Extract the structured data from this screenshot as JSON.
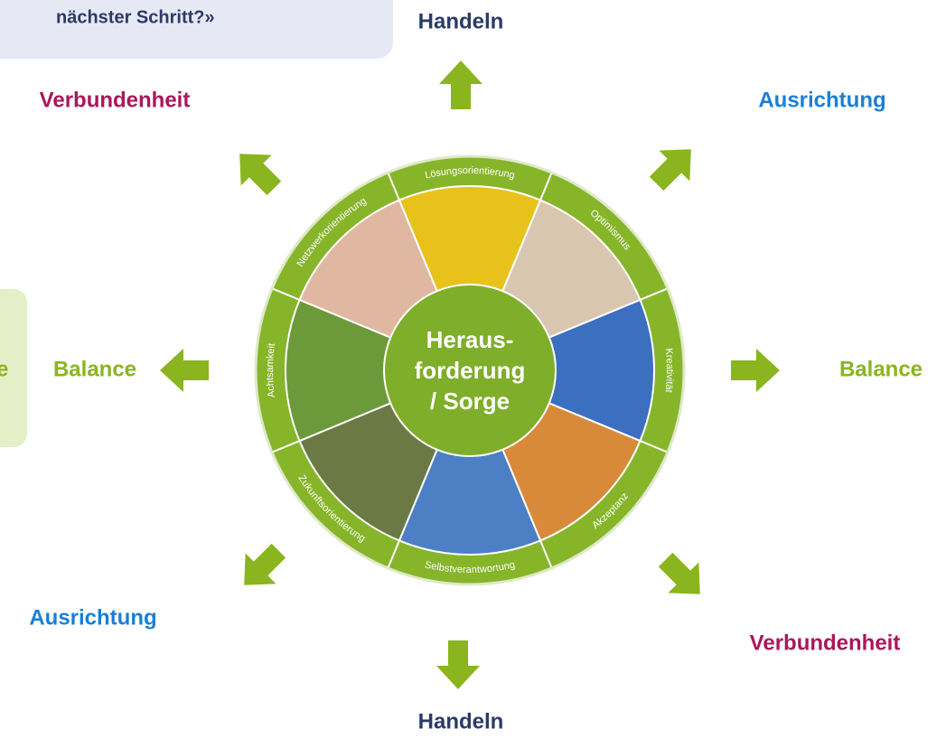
{
  "top_box": {
    "text": "nächster Schritt?»"
  },
  "left_box": {
    "text": "e"
  },
  "outer_labels": [
    {
      "text": "Handeln"
    },
    {
      "text": "Ausrichtung"
    },
    {
      "text": "Balance"
    },
    {
      "text": "Verbundenheit"
    },
    {
      "text": "Handeln"
    },
    {
      "text": "Ausrichtung"
    },
    {
      "text": "Balance"
    },
    {
      "text": "Verbundenheit"
    }
  ],
  "center": {
    "lines": [
      "Heraus-",
      "forderung",
      "/ Sorge"
    ]
  },
  "segments": [
    {
      "label": "Lösungsorientierung"
    },
    {
      "label": "Optimismus"
    },
    {
      "label": "Kreativität"
    },
    {
      "label": "Akzeptanz"
    },
    {
      "label": "Selbstverantwortung"
    },
    {
      "label": "Zukunftsorientierung"
    },
    {
      "label": "Achtsamkeit"
    },
    {
      "label": "Netzwerkorientierung"
    }
  ]
}
